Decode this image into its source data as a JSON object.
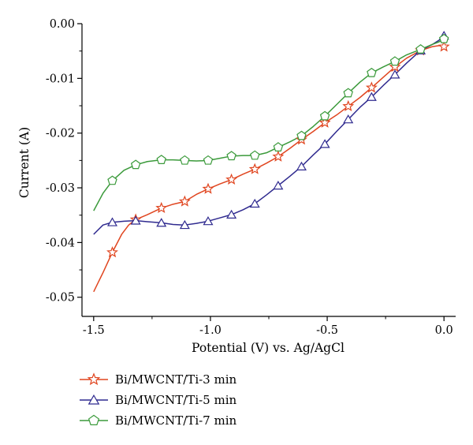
{
  "chart_data": {
    "type": "line",
    "title": "",
    "xlabel": "Potential (V) vs. Ag/AgCl",
    "ylabel": "Current (A)",
    "xlim": [
      -1.55,
      0.05
    ],
    "ylim": [
      -0.0535,
      0.0
    ],
    "xticks": [
      -1.5,
      -1.0,
      -0.5,
      0.0
    ],
    "xtick_labels": [
      "-1.5",
      "-1.0",
      "-0.5",
      "0.0"
    ],
    "yticks": [
      0.0,
      -0.01,
      -0.02,
      -0.03,
      -0.04,
      -0.05
    ],
    "ytick_labels": [
      "0.00",
      "-0.01",
      "-0.02",
      "-0.03",
      "-0.04",
      "-0.05"
    ],
    "grid": false,
    "legend_position": "below",
    "series": [
      {
        "name": "Bi/MWCNT/Ti-3 min",
        "color": "#e0451f",
        "marker": "star",
        "x": [
          -1.5,
          -1.46,
          -1.42,
          -1.38,
          -1.35,
          -1.32,
          -1.27,
          -1.21,
          -1.16,
          -1.11,
          -1.06,
          -1.01,
          -0.96,
          -0.91,
          -0.86,
          -0.81,
          -0.76,
          -0.71,
          -0.66,
          -0.61,
          -0.56,
          -0.51,
          -0.46,
          -0.41,
          -0.36,
          -0.31,
          -0.26,
          -0.21,
          -0.16,
          -0.1,
          -0.05,
          -0.02,
          0.0
        ],
        "y": [
          -0.049,
          -0.0455,
          -0.0418,
          -0.0385,
          -0.0368,
          -0.0358,
          -0.0349,
          -0.0337,
          -0.033,
          -0.0325,
          -0.0312,
          -0.0302,
          -0.0293,
          -0.0285,
          -0.0275,
          -0.0266,
          -0.0255,
          -0.0243,
          -0.0228,
          -0.0212,
          -0.0197,
          -0.0181,
          -0.0167,
          -0.0151,
          -0.0135,
          -0.0117,
          -0.0098,
          -0.0079,
          -0.0063,
          -0.0049,
          -0.0042,
          -0.004,
          -0.0042
        ],
        "marker_x": [
          -1.42,
          -1.32,
          -1.21,
          -1.11,
          -1.01,
          -0.91,
          -0.81,
          -0.71,
          -0.61,
          -0.51,
          -0.41,
          -0.31,
          -0.21,
          -0.1,
          0.0
        ],
        "marker_y": [
          -0.0418,
          -0.0358,
          -0.0337,
          -0.0325,
          -0.0302,
          -0.0285,
          -0.0266,
          -0.0243,
          -0.0212,
          -0.0181,
          -0.0151,
          -0.0117,
          -0.0079,
          -0.0049,
          -0.0042
        ]
      },
      {
        "name": "Bi/MWCNT/Ti-5 min",
        "color": "#2f2a8f",
        "marker": "triangle",
        "x": [
          -1.5,
          -1.46,
          -1.42,
          -1.37,
          -1.32,
          -1.27,
          -1.21,
          -1.16,
          -1.11,
          -1.06,
          -1.01,
          -0.96,
          -0.91,
          -0.86,
          -0.81,
          -0.76,
          -0.71,
          -0.66,
          -0.61,
          -0.56,
          -0.51,
          -0.46,
          -0.41,
          -0.36,
          -0.31,
          -0.26,
          -0.21,
          -0.16,
          -0.1,
          -0.05,
          -0.02,
          0.0
        ],
        "y": [
          -0.0385,
          -0.0368,
          -0.0363,
          -0.0361,
          -0.036,
          -0.0362,
          -0.0364,
          -0.0367,
          -0.0368,
          -0.0365,
          -0.0361,
          -0.0355,
          -0.0349,
          -0.034,
          -0.0329,
          -0.0313,
          -0.0296,
          -0.0279,
          -0.0261,
          -0.024,
          -0.022,
          -0.0197,
          -0.0175,
          -0.0153,
          -0.0134,
          -0.0113,
          -0.0093,
          -0.0072,
          -0.0049,
          -0.0038,
          -0.003,
          -0.0022
        ],
        "marker_x": [
          -1.42,
          -1.32,
          -1.21,
          -1.11,
          -1.01,
          -0.91,
          -0.81,
          -0.71,
          -0.61,
          -0.51,
          -0.41,
          -0.31,
          -0.21,
          -0.1,
          0.0
        ],
        "marker_y": [
          -0.0363,
          -0.036,
          -0.0364,
          -0.0368,
          -0.0361,
          -0.0349,
          -0.0329,
          -0.0296,
          -0.0261,
          -0.022,
          -0.0175,
          -0.0134,
          -0.0093,
          -0.0049,
          -0.0022
        ]
      },
      {
        "name": "Bi/MWCNT/Ti-7 min",
        "color": "#3b9a3b",
        "marker": "pentagon",
        "x": [
          -1.5,
          -1.46,
          -1.42,
          -1.37,
          -1.32,
          -1.27,
          -1.21,
          -1.16,
          -1.11,
          -1.06,
          -1.01,
          -0.96,
          -0.91,
          -0.86,
          -0.81,
          -0.76,
          -0.71,
          -0.66,
          -0.61,
          -0.56,
          -0.51,
          -0.46,
          -0.41,
          -0.36,
          -0.31,
          -0.26,
          -0.21,
          -0.16,
          -0.1,
          -0.05,
          -0.02,
          0.0
        ],
        "y": [
          -0.0342,
          -0.031,
          -0.0287,
          -0.0268,
          -0.0258,
          -0.0252,
          -0.0249,
          -0.0249,
          -0.025,
          -0.0251,
          -0.025,
          -0.0246,
          -0.0242,
          -0.0241,
          -0.0241,
          -0.0236,
          -0.0226,
          -0.0216,
          -0.0205,
          -0.0188,
          -0.0169,
          -0.0148,
          -0.0127,
          -0.0107,
          -0.009,
          -0.0079,
          -0.0069,
          -0.0057,
          -0.0047,
          -0.0038,
          -0.0033,
          -0.0028
        ],
        "marker_x": [
          -1.42,
          -1.32,
          -1.21,
          -1.11,
          -1.01,
          -0.91,
          -0.81,
          -0.71,
          -0.61,
          -0.51,
          -0.41,
          -0.31,
          -0.21,
          -0.1,
          0.0
        ],
        "marker_y": [
          -0.0287,
          -0.0258,
          -0.0249,
          -0.025,
          -0.025,
          -0.0242,
          -0.0241,
          -0.0226,
          -0.0205,
          -0.0169,
          -0.0127,
          -0.009,
          -0.0069,
          -0.0047,
          -0.0028
        ]
      }
    ]
  }
}
